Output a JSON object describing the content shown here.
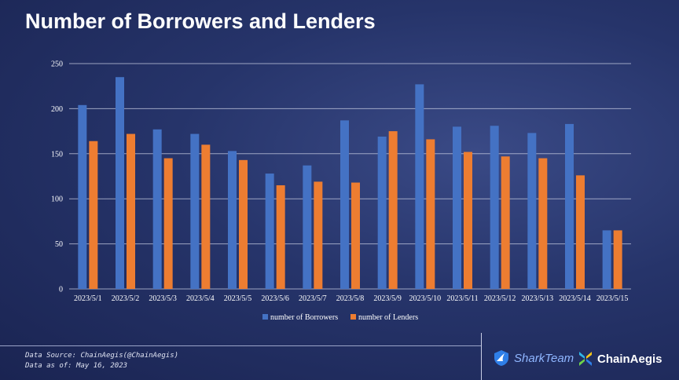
{
  "chart_data": {
    "type": "bar",
    "title": "Number of Borrowers and Lenders",
    "categories": [
      "2023/5/1",
      "2023/5/2",
      "2023/5/3",
      "2023/5/4",
      "2023/5/5",
      "2023/5/6",
      "2023/5/7",
      "2023/5/8",
      "2023/5/9",
      "2023/5/10",
      "2023/5/11",
      "2023/5/12",
      "2023/5/13",
      "2023/5/14",
      "2023/5/15"
    ],
    "series": [
      {
        "name": "number of Borrowers",
        "color": "#4472c4",
        "values": [
          204,
          235,
          177,
          172,
          153,
          128,
          137,
          187,
          169,
          227,
          180,
          181,
          173,
          183,
          65
        ]
      },
      {
        "name": "number of Lenders",
        "color": "#ed7d31",
        "values": [
          164,
          172,
          145,
          160,
          143,
          115,
          119,
          118,
          175,
          166,
          152,
          147,
          145,
          126,
          65
        ]
      }
    ],
    "yticks": [
      0,
      50,
      100,
      150,
      200,
      250
    ],
    "ylim": [
      0,
      250
    ],
    "xlabel": "",
    "ylabel": "",
    "legend": "bottom-center",
    "grid": true
  },
  "footer": {
    "source": "Data Source: ChainAegis(@ChainAegis)",
    "as_of": "Data as of: May 16, 2023",
    "logo_shark": "SharkTeam",
    "logo_chain": "ChainAegis"
  }
}
